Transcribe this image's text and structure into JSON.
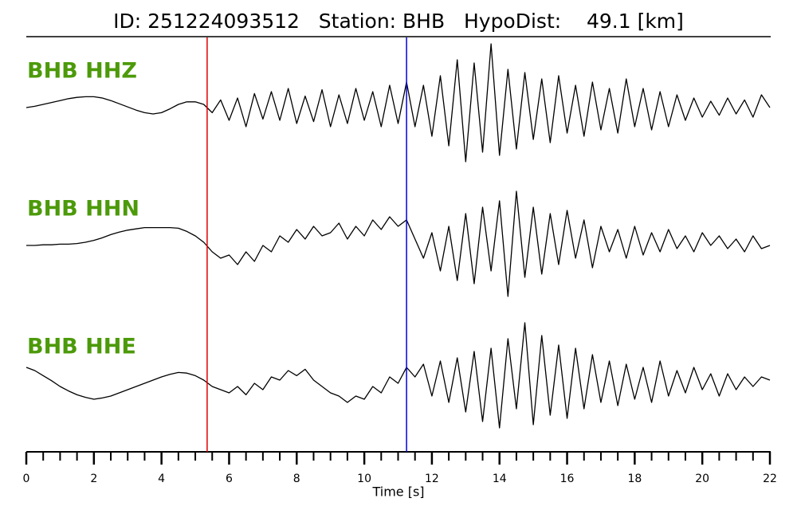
{
  "chart_data": {
    "type": "line",
    "title": "ID: 251224093512   Station: BHB   HypoDist:    49.1 [km]",
    "xlabel": "Time [s]",
    "xlim": [
      0,
      22
    ],
    "xticks": [
      0,
      2,
      4,
      6,
      8,
      10,
      12,
      14,
      16,
      18,
      20,
      22
    ],
    "minor_xticks": [
      0.5,
      1,
      1.5,
      2.5,
      3,
      3.5,
      4.5,
      5,
      5.5,
      6.5,
      7,
      7.5,
      8.5,
      9,
      9.5,
      10.5,
      11,
      11.5,
      12.5,
      13,
      13.5,
      14.5,
      15,
      15.5,
      16.5,
      17,
      17.5,
      18.5,
      19,
      19.5,
      20.5,
      21,
      21.5
    ],
    "ylim": [
      -1.1,
      1.1
    ],
    "label_color": "#4c9a0a",
    "picks": [
      {
        "x": 5.35,
        "color": "#e00000"
      },
      {
        "x": 11.25,
        "color": "#0000dd"
      }
    ],
    "x": [
      0,
      0.25,
      0.5,
      0.75,
      1,
      1.25,
      1.5,
      1.75,
      2,
      2.25,
      2.5,
      2.75,
      3,
      3.25,
      3.5,
      3.75,
      4,
      4.25,
      4.5,
      4.75,
      5,
      5.25,
      5.5,
      5.75,
      6,
      6.25,
      6.5,
      6.75,
      7,
      7.25,
      7.5,
      7.75,
      8,
      8.25,
      8.5,
      8.75,
      9,
      9.25,
      9.5,
      9.75,
      10,
      10.25,
      10.5,
      10.75,
      11,
      11.25,
      11.5,
      11.75,
      12,
      12.25,
      12.5,
      12.75,
      13,
      13.25,
      13.5,
      13.75,
      14,
      14.25,
      14.5,
      14.75,
      15,
      15.25,
      15.5,
      15.75,
      16,
      16.25,
      16.5,
      16.75,
      17,
      17.25,
      17.5,
      17.75,
      18,
      18.25,
      18.5,
      18.75,
      19,
      19.25,
      19.5,
      19.75,
      20,
      20.25,
      20.5,
      20.75,
      21,
      21.25,
      21.5,
      21.75,
      22
    ],
    "series": [
      {
        "name": "BHB HHZ",
        "color": "#000000",
        "values": [
          0.0,
          0.02,
          0.05,
          0.08,
          0.11,
          0.14,
          0.16,
          0.17,
          0.17,
          0.15,
          0.11,
          0.06,
          0.01,
          -0.04,
          -0.08,
          -0.1,
          -0.08,
          -0.02,
          0.05,
          0.09,
          0.09,
          0.05,
          -0.08,
          0.12,
          -0.2,
          0.15,
          -0.3,
          0.22,
          -0.18,
          0.25,
          -0.2,
          0.3,
          -0.25,
          0.18,
          -0.22,
          0.28,
          -0.3,
          0.2,
          -0.25,
          0.3,
          -0.2,
          0.25,
          -0.3,
          0.35,
          -0.25,
          0.4,
          -0.3,
          0.35,
          -0.45,
          0.5,
          -0.6,
          0.75,
          -0.85,
          0.7,
          -0.7,
          1.0,
          -0.75,
          0.6,
          -0.65,
          0.55,
          -0.5,
          0.45,
          -0.55,
          0.5,
          -0.4,
          0.35,
          -0.45,
          0.4,
          -0.35,
          0.3,
          -0.4,
          0.45,
          -0.3,
          0.3,
          -0.35,
          0.25,
          -0.3,
          0.2,
          -0.2,
          0.15,
          -0.15,
          0.1,
          -0.12,
          0.15,
          -0.1,
          0.12,
          -0.15,
          0.2,
          0.0
        ]
      },
      {
        "name": "BHB HHN",
        "color": "#000000",
        "values": [
          0.0,
          0.0,
          0.01,
          0.01,
          0.02,
          0.02,
          0.03,
          0.05,
          0.08,
          0.12,
          0.17,
          0.21,
          0.24,
          0.26,
          0.28,
          0.28,
          0.28,
          0.28,
          0.27,
          0.22,
          0.15,
          0.05,
          -0.1,
          -0.2,
          -0.15,
          -0.3,
          -0.1,
          -0.25,
          0.0,
          -0.1,
          0.15,
          0.05,
          0.25,
          0.1,
          0.3,
          0.15,
          0.2,
          0.35,
          0.1,
          0.3,
          0.15,
          0.4,
          0.25,
          0.45,
          0.3,
          0.4,
          0.1,
          -0.2,
          0.2,
          -0.4,
          0.3,
          -0.55,
          0.5,
          -0.6,
          0.6,
          -0.4,
          0.7,
          -0.8,
          0.85,
          -0.5,
          0.6,
          -0.45,
          0.5,
          -0.3,
          0.55,
          -0.2,
          0.4,
          -0.35,
          0.3,
          -0.1,
          0.25,
          -0.2,
          0.3,
          -0.15,
          0.2,
          -0.1,
          0.25,
          -0.05,
          0.15,
          -0.1,
          0.2,
          0.0,
          0.15,
          -0.05,
          0.1,
          -0.1,
          0.15,
          -0.05,
          0.0
        ]
      },
      {
        "name": "BHB HHE",
        "color": "#000000",
        "values": [
          0.25,
          0.2,
          0.12,
          0.04,
          -0.05,
          -0.12,
          -0.18,
          -0.22,
          -0.25,
          -0.23,
          -0.2,
          -0.15,
          -0.1,
          -0.05,
          0.0,
          0.05,
          0.1,
          0.14,
          0.17,
          0.16,
          0.12,
          0.05,
          -0.05,
          -0.1,
          -0.15,
          -0.05,
          -0.18,
          0.0,
          -0.1,
          0.1,
          0.05,
          0.2,
          0.12,
          0.22,
          0.05,
          -0.05,
          -0.15,
          -0.2,
          -0.3,
          -0.2,
          -0.25,
          -0.05,
          -0.15,
          0.1,
          0.0,
          0.25,
          0.1,
          0.3,
          -0.2,
          0.35,
          -0.3,
          0.4,
          -0.45,
          0.5,
          -0.6,
          0.55,
          -0.7,
          0.7,
          -0.4,
          0.95,
          -0.65,
          0.75,
          -0.5,
          0.6,
          -0.55,
          0.55,
          -0.4,
          0.45,
          -0.3,
          0.35,
          -0.35,
          0.3,
          -0.25,
          0.25,
          -0.3,
          0.35,
          -0.2,
          0.2,
          -0.15,
          0.25,
          -0.1,
          0.15,
          -0.2,
          0.15,
          -0.1,
          0.1,
          -0.05,
          0.1,
          0.05
        ]
      }
    ]
  }
}
